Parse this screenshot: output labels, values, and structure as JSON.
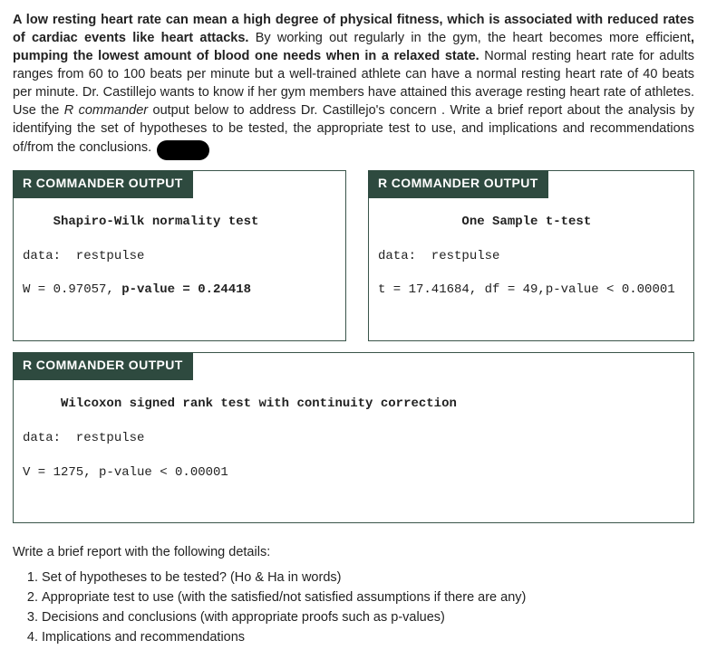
{
  "intro": {
    "bold1": "A low resting heart rate can mean a high degree of physical fitness, which is associated with reduced rates of cardiac events like heart attacks.",
    "plain1": " By working out regularly in the gym, the heart becomes more efficient",
    "bold2": ", pumping the lowest amount of blood one needs when in a relaxed state.",
    "plain2": " Normal resting heart rate for adults ranges from 60 to 100 beats per minute but a well-trained athlete can have a normal resting heart rate of 40 beats per minute. Dr. Castillejo wants to know if her gym members have attained this average  resting heart rate of athletes. ",
    "use_the": "Use the",
    "rcmd_italic": " R commander",
    "plain3": " output below to address Dr. Castillejo's concern . Write a brief report about the analysis by identifying the set of hypotheses to be tested, the appropriate test to use, and implications and recommendations of/from the conclusions. "
  },
  "panel_label": "R COMMANDER OUTPUT",
  "shapiro": {
    "title": "    Shapiro-Wilk normality test",
    "data_line": "data:  restpulse",
    "stat_pre": "W = 0.97057, ",
    "stat_bold": "p-value = 0.24418"
  },
  "ttest": {
    "title": "           One Sample t-test",
    "data_line": "data:  restpulse",
    "stat": "t = 17.41684, df = 49,p-value < 0.00001"
  },
  "wilcox": {
    "title": "     Wilcoxon signed rank test with continuity correction",
    "data_line": "data:  restpulse",
    "stat": "V = 1275, p-value < 0.00001"
  },
  "report_intro": "Write a brief report with the following details:",
  "report_items": [
    "Set of hypotheses to be tested? (Ho & Ha in words)",
    "Appropriate test to use (with the satisfied/not satisfied assumptions if there are any)",
    "Decisions and conclusions (with appropriate proofs such as p-values)",
    "Implications and recommendations"
  ]
}
